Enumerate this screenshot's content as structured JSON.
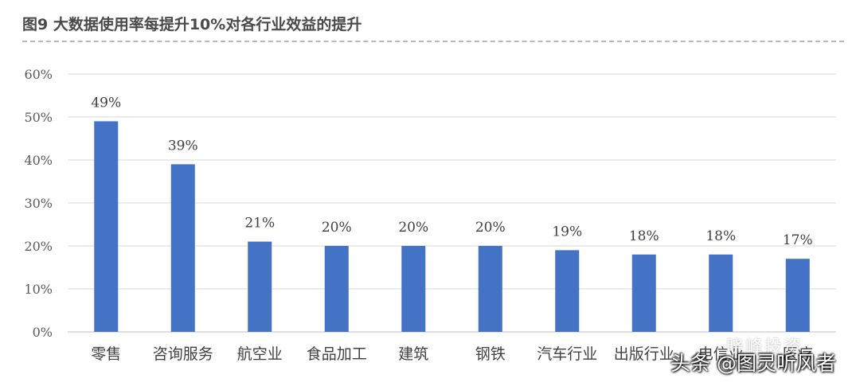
{
  "chart_data": {
    "type": "bar",
    "title": "图9 大数据使用率每提升10%对各行业效益的提升",
    "categories": [
      "零售",
      "咨询服务",
      "航空业",
      "食品加工",
      "建筑",
      "钢铁",
      "汽车行业",
      "出版行业",
      "电信业",
      "医疗"
    ],
    "values": [
      49,
      39,
      21,
      20,
      20,
      20,
      19,
      18,
      18,
      17
    ],
    "value_labels": [
      "49%",
      "39%",
      "21%",
      "20%",
      "20%",
      "20%",
      "19%",
      "18%",
      "18%",
      "17%"
    ],
    "ylim": [
      0,
      60
    ],
    "yticks": [
      "0%",
      "10%",
      "20%",
      "30%",
      "40%",
      "50%",
      "60%"
    ],
    "ytick_values": [
      0,
      10,
      20,
      30,
      40,
      50,
      60
    ],
    "bar_color": "#4472c4",
    "grid": true,
    "xlabel": "",
    "ylabel": ""
  },
  "watermarks": {
    "brand": "晓峰投资",
    "platform": "头条 @图灵听风者"
  }
}
